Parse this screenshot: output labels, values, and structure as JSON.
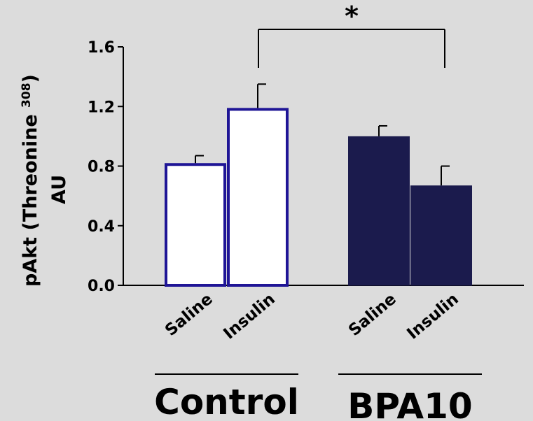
{
  "chart_data": {
    "type": "bar",
    "ylabel_line1": "pAkt (Threonine ",
    "ylabel_sup": "308",
    "ylabel_close": ")",
    "ylabel_line2": "AU",
    "ylim": [
      0,
      1.6
    ],
    "yticks": [
      "0.0",
      "0.4",
      "0.8",
      "1.2",
      "1.6"
    ],
    "ytick_values": [
      0,
      0.4,
      0.8,
      1.2,
      1.6
    ],
    "groups": [
      {
        "name": "Control",
        "categories": [
          "Saline",
          "Insulin"
        ],
        "values": [
          0.82,
          1.19
        ],
        "errors": [
          0.05,
          0.16
        ],
        "fill": "#ffffff",
        "stroke": "#1f1596"
      },
      {
        "name": "BPA10",
        "categories": [
          "Saline",
          "Insulin"
        ],
        "values": [
          1.0,
          0.67
        ],
        "errors": [
          0.07,
          0.13
        ],
        "fill": "#1b1b4d",
        "stroke": "#1b1b4d"
      }
    ],
    "significance": {
      "label": "*",
      "between": [
        "Control Insulin",
        "BPA10 Insulin"
      ]
    },
    "grid": false,
    "legend": "none"
  }
}
